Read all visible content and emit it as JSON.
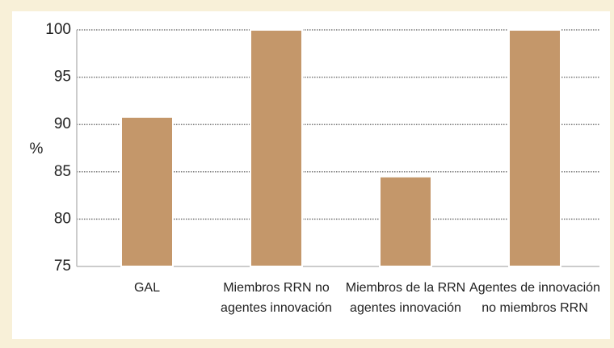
{
  "chart_data": {
    "type": "bar",
    "y_label": "%",
    "categories": [
      [
        "GAL"
      ],
      [
        "Miembros RRN no",
        "agentes innovación"
      ],
      [
        "Miembros de la RRN",
        "agentes innovación"
      ],
      [
        "Agentes de innovación",
        "no miembros RRN"
      ]
    ],
    "values": [
      90.8,
      100,
      84.5,
      100
    ],
    "color": "#c4976a",
    "ylim": [
      75,
      100
    ],
    "yticks": [
      75,
      80,
      85,
      90,
      95,
      100
    ],
    "grid": true
  }
}
